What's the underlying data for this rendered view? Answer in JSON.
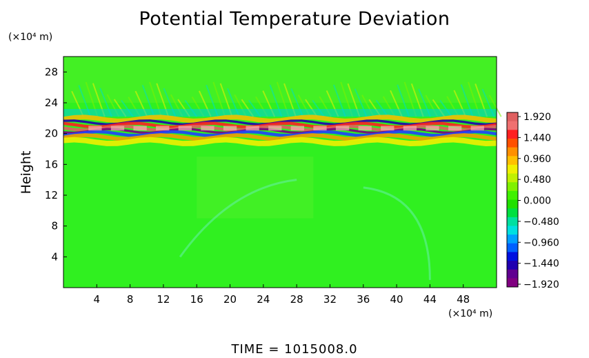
{
  "chart_data": {
    "type": "heatmap",
    "title": "Potential Temperature Deviation",
    "ylabel": "Height",
    "y_unit": "(×10⁴ m)",
    "x_unit": "(×10⁴ m)",
    "xlim": [
      0,
      52
    ],
    "ylim": [
      0,
      30
    ],
    "x_ticks": [
      "4",
      "8",
      "12",
      "16",
      "20",
      "24",
      "28",
      "32",
      "36",
      "40",
      "44",
      "48"
    ],
    "y_ticks": [
      "4",
      "8",
      "12",
      "16",
      "20",
      "24",
      "28"
    ],
    "colorbar": {
      "range": [
        -1.92,
        1.92
      ],
      "labels": [
        "1.920",
        "1.440",
        "0.960",
        "0.480",
        "0.000",
        "−0.480",
        "−0.960",
        "−1.440",
        "−1.920"
      ],
      "colors": [
        "#e06060",
        "#f07070",
        "#ff2020",
        "#ff5000",
        "#ff9000",
        "#ffc000",
        "#f0f000",
        "#c0f000",
        "#80f000",
        "#40f000",
        "#20e000",
        "#00e040",
        "#00e0a0",
        "#00e0e0",
        "#00a0ff",
        "#0060ff",
        "#0010e0",
        "#2000b0",
        "#600090",
        "#800080"
      ]
    },
    "series": [
      {
        "height_range": [
          0,
          19
        ],
        "dominant_value": 0.0
      },
      {
        "height_range": [
          19,
          22
        ],
        "dominant_value": 1.92,
        "feature": "alternating strong positive/negative band"
      },
      {
        "height_range": [
          22,
          30
        ],
        "dominant_value": 0.2,
        "feature": "wave pattern"
      }
    ]
  },
  "footer": {
    "time_label": "TIME  =  1015008.0"
  }
}
